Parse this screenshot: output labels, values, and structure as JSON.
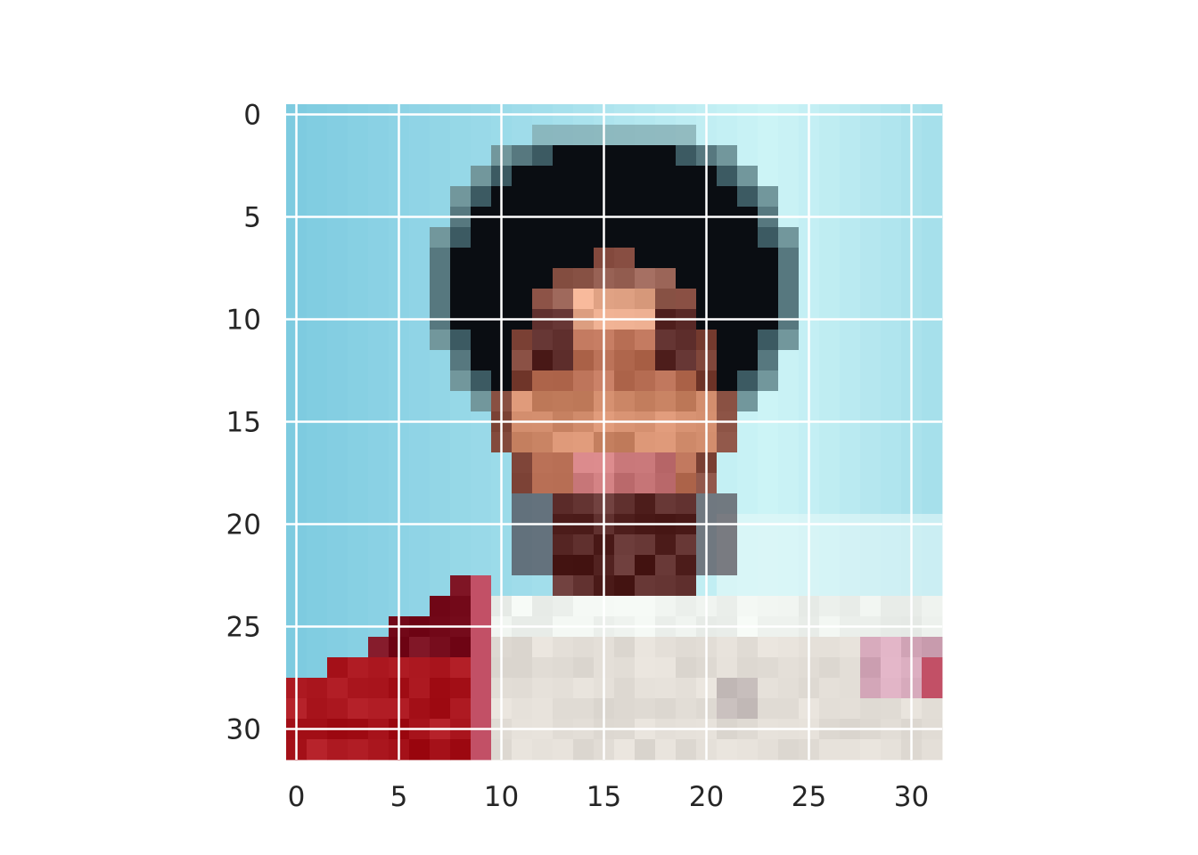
{
  "chart_data": {
    "type": "heatmap",
    "title": "",
    "xlabel": "",
    "ylabel": "",
    "grid": true,
    "xlim": [
      -0.5,
      31.5
    ],
    "ylim": [
      31.5,
      -0.5
    ],
    "xticks": [
      0,
      5,
      10,
      15,
      20,
      25,
      30
    ],
    "yticks": [
      0,
      5,
      10,
      15,
      20,
      25,
      30
    ],
    "xtick_labels": [
      "0",
      "5",
      "10",
      "15",
      "20",
      "25",
      "30"
    ],
    "ytick_labels": [
      "0",
      "5",
      "10",
      "15",
      "20",
      "25",
      "30"
    ],
    "grid_color": "#ffffff",
    "background_color": "#ffffff",
    "image_description": "32x32 pixelated RGB image of a person",
    "colors": {
      "sky_dark": "#7ecbe0",
      "sky": "#9edcea",
      "sky_light": "#b4ecf2",
      "sky_pale": "#cdf4f6",
      "sky_white": "#e4f8f8",
      "hair": "#0a0d12",
      "hair_edge": "#3c5a62",
      "hair_fade": "#7fa6ab",
      "skin_dark": "#5a2a28",
      "skin": "#b86f55",
      "skin_mid": "#cf8a6a",
      "skin_light": "#e5a789",
      "lip": "#c9787a",
      "shadow": "#3a2a33",
      "red": "#a8141c",
      "red_dark": "#7a1020",
      "red_pink": "#c25066",
      "shirt": "#e2ddd6",
      "shirt_light": "#eef2ee",
      "shirt_gray": "#c9c0be",
      "pink": "#d6a9bb"
    }
  }
}
